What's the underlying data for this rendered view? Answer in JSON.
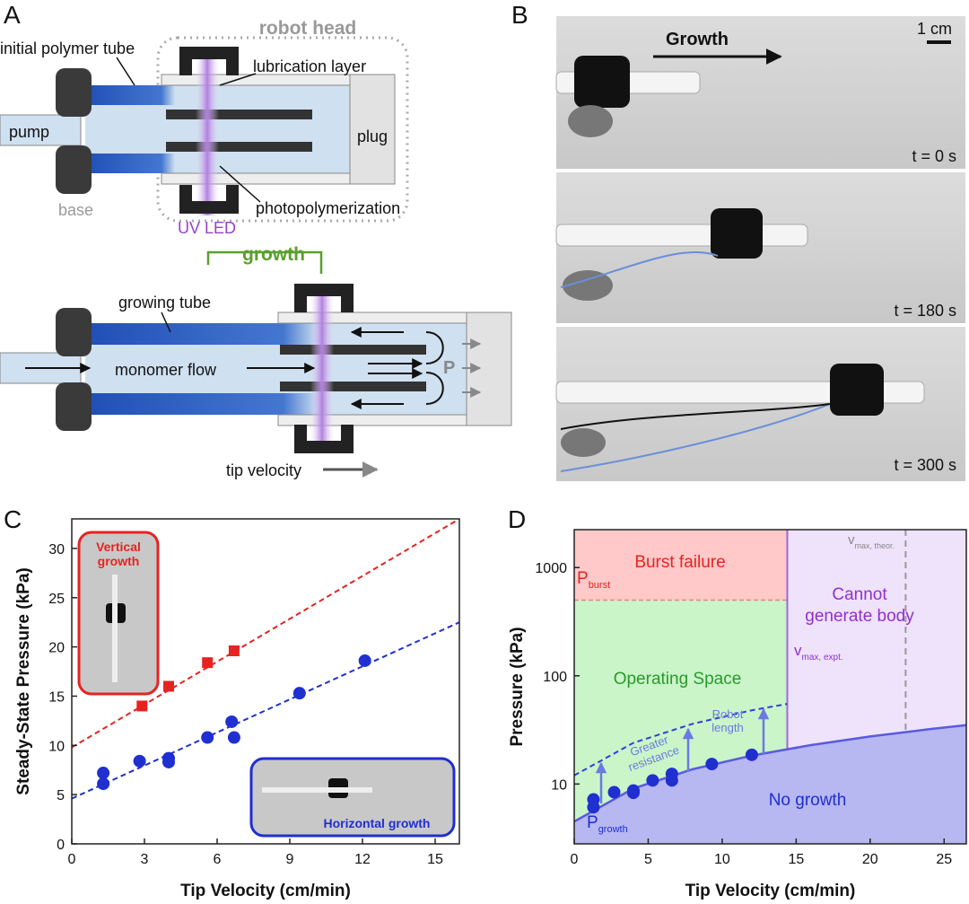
{
  "panel_labels": [
    "A",
    "B",
    "C",
    "D"
  ],
  "diagram": {
    "robot_head": "robot head",
    "initial_polymer_tube": "initial polymer tube",
    "lubrication_layer": "lubrication layer",
    "pump": "pump",
    "plug": "plug",
    "base": "base",
    "photopolymerization": "photopolymerization",
    "uv_led": "UV LED",
    "growth": "growth",
    "growing_tube": "growing tube",
    "monomer_flow": "monomer flow",
    "pressure": "P",
    "tip_velocity": "tip velocity"
  },
  "photos": {
    "growth": "Growth",
    "scale": "1 cm",
    "times": [
      "t = 0 s",
      "t = 180 s",
      "t = 300 s"
    ]
  },
  "chart_data": [
    {
      "type": "scatter",
      "xlabel": "Tip Velocity (cm/min)",
      "ylabel": "Steady-State Pressure (kPa)",
      "xlim": [
        0,
        16
      ],
      "ylim": [
        0,
        33
      ],
      "xticks": [
        0,
        3,
        6,
        9,
        12,
        15
      ],
      "yticks": [
        0,
        5,
        10,
        15,
        20,
        25,
        30
      ],
      "insets": [
        {
          "lines": [
            "Vertical",
            "growth"
          ],
          "color": "#e52420"
        },
        {
          "lines": [
            "Horizontal growth"
          ],
          "color": "#1f2fd0"
        }
      ],
      "series": [
        {
          "color": "#e52420",
          "line": "dashed",
          "x": [
            0,
            16
          ],
          "values": [
            9.8,
            33.0
          ]
        },
        {
          "color": "#1f2fd0",
          "line": "dashed",
          "x": [
            0,
            16
          ],
          "values": [
            4.6,
            22.5
          ]
        },
        {
          "color": "#e52420",
          "marker": "square",
          "x": [
            2.9,
            4.0,
            5.6,
            6.7
          ],
          "values": [
            14.0,
            16.0,
            18.4,
            19.6
          ]
        },
        {
          "color": "#1f2fd0",
          "marker": "circle",
          "x": [
            1.3,
            1.3,
            2.8,
            4.0,
            4.0,
            5.6,
            6.6,
            6.7,
            9.4,
            12.1
          ],
          "values": [
            7.2,
            6.1,
            8.4,
            8.7,
            8.3,
            10.8,
            12.4,
            10.8,
            15.3,
            18.6
          ]
        }
      ]
    },
    {
      "type": "scatter",
      "log_y": true,
      "xlabel": "Tip Velocity (cm/min)",
      "ylabel": "Pressure (kPa)",
      "xlim": [
        0,
        26.5
      ],
      "ylim": [
        2.8,
        2240
      ],
      "xticks": [
        0,
        5,
        10,
        15,
        20,
        25
      ],
      "yticks": [
        10,
        100,
        1000
      ],
      "regions": {
        "burst": "#ffc9c9",
        "operating": "#c9f5c9",
        "cannot": "#efe2fb",
        "no_growth": "#b7b7f2"
      },
      "annotations": {
        "burst_failure": "Burst failure",
        "operating_space": "Operating Space",
        "cannot": [
          "Cannot",
          "generate body"
        ],
        "no_growth": "No growth",
        "greater_resistance": [
          "Greater",
          "resistance"
        ],
        "robot_length": [
          "Robot",
          "length"
        ],
        "p_burst": {
          "label": "P",
          "sub": "burst",
          "value": 500
        },
        "p_growth": {
          "label": "P",
          "sub": "growth"
        },
        "v_max_expt": {
          "label": "v",
          "sub": "max, expt.",
          "value": 14.4
        },
        "v_max_theor": {
          "label": "v",
          "sub": "max, theor.",
          "value": 22.4
        }
      },
      "series": [
        {
          "color": "#5a5ae0",
          "line": "solid",
          "fill": true,
          "x": [
            0,
            4,
            8,
            12,
            16,
            20,
            24,
            26.5
          ],
          "values": [
            4.5,
            9.1,
            13.7,
            18.3,
            22.9,
            27.5,
            32.1,
            35
          ]
        },
        {
          "color": "#2f3fd8",
          "line": "dashed",
          "x": [
            0,
            4,
            8,
            12,
            14.4
          ],
          "values": [
            12,
            24,
            36,
            48,
            55
          ]
        },
        {
          "color": "#1f2fd0",
          "marker": "circle",
          "x": [
            1.3,
            1.3,
            2.7,
            4.0,
            4.0,
            5.3,
            6.6,
            6.6,
            9.3,
            12.0
          ],
          "values": [
            7.2,
            6.1,
            8.4,
            8.7,
            8.3,
            10.8,
            12.4,
            10.8,
            15.3,
            18.6
          ]
        }
      ]
    }
  ]
}
